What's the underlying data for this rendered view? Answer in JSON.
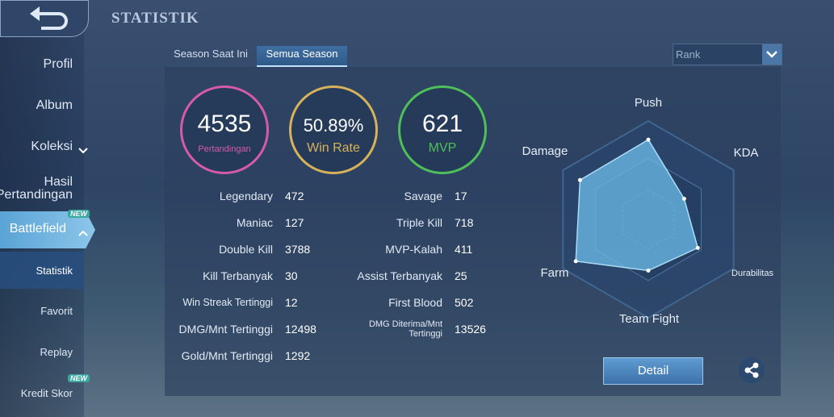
{
  "header": {
    "title": "STATISTIK"
  },
  "sidebar": {
    "items": [
      "Profil",
      "Album",
      "Koleksi",
      "Hasil Pertandingan",
      "Battlefield",
      "Statistik",
      "Favorit",
      "Replay",
      "Kredit Skor"
    ],
    "badges": [
      "NEW",
      "NEW"
    ]
  },
  "tabs": [
    "Season Saat Ini",
    "Semua Season"
  ],
  "dropdown": "Rank",
  "summary": [
    {
      "value": 4535,
      "label": "Pertandingan"
    },
    {
      "value": "50.89%",
      "label": "Win Rate"
    },
    {
      "value": 621,
      "label": "MVP"
    }
  ],
  "stats": {
    "left": [
      [
        "Legendary",
        472
      ],
      [
        "Maniac",
        127
      ],
      [
        "Double Kill",
        3788
      ],
      [
        "Kill Terbanyak",
        30
      ],
      [
        "Win Streak Tertinggi",
        12
      ],
      [
        "DMG/Mnt Tertinggi",
        12498
      ],
      [
        "Gold/Mnt Tertinggi",
        1292
      ]
    ],
    "right": [
      [
        "Savage",
        17
      ],
      [
        "Triple Kill",
        718
      ],
      [
        "MVP-Kalah",
        411
      ],
      [
        "Assist Terbanyak",
        25
      ],
      [
        "First Blood",
        502
      ],
      [
        "DMG Diterima/Mnt Tertinggi",
        13526
      ]
    ]
  },
  "radar": {
    "axes": [
      "Push",
      "KDA",
      "Durabilitas",
      "Team Fight",
      "Farm",
      "Damage"
    ],
    "values": [
      0.81,
      0.42,
      0.58,
      0.52,
      0.85,
      0.8
    ]
  },
  "button": "Detail"
}
